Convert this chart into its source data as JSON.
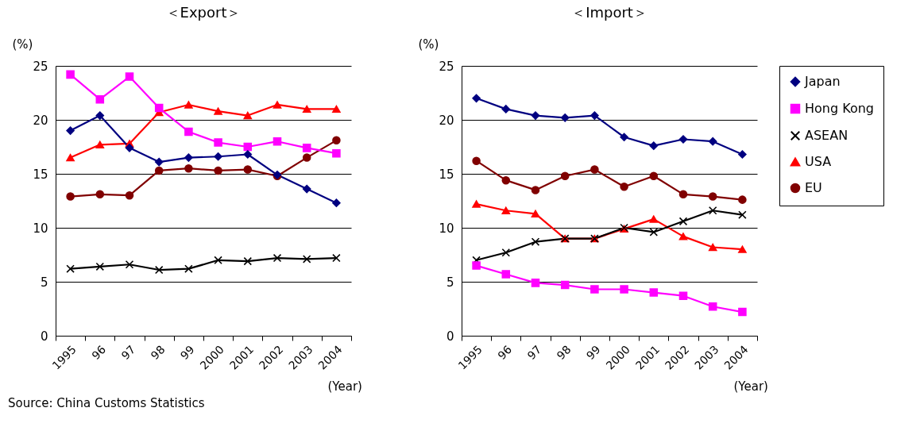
{
  "chart_data": [
    {
      "type": "line",
      "title": "＜Export＞",
      "ylabel": "(%)",
      "xlabel": "(Year)",
      "categories": [
        "1995",
        "96",
        "97",
        "98",
        "99",
        "2000",
        "2001",
        "2002",
        "2003",
        "2004"
      ],
      "ylim": [
        0,
        25
      ],
      "yticks": [
        0,
        5,
        10,
        15,
        20,
        25
      ],
      "grid": "y",
      "legend": "top right",
      "annotations": [
        "Source: China Customs Statistics"
      ],
      "series": [
        {
          "name": "Japan",
          "color": "#000080",
          "marker": "diamond",
          "values": [
            19.0,
            20.4,
            17.4,
            16.1,
            16.5,
            16.6,
            16.8,
            14.9,
            13.6,
            12.3
          ]
        },
        {
          "name": "Hong Kong",
          "color": "#ff00ff",
          "marker": "square",
          "values": [
            24.2,
            21.9,
            24.0,
            21.1,
            18.9,
            17.9,
            17.5,
            18.0,
            17.4,
            16.9
          ]
        },
        {
          "name": "ASEAN",
          "color": "#000000",
          "marker": "cross",
          "values": [
            6.2,
            6.4,
            6.6,
            6.1,
            6.2,
            7.0,
            6.9,
            7.2,
            7.1,
            7.2
          ]
        },
        {
          "name": "USA",
          "color": "#ff0000",
          "marker": "triangle",
          "values": [
            16.5,
            17.7,
            17.8,
            20.7,
            21.4,
            20.8,
            20.4,
            21.4,
            21.0,
            21.0
          ]
        },
        {
          "name": "EU",
          "color": "#800000",
          "marker": "circle",
          "values": [
            12.9,
            13.1,
            13.0,
            15.3,
            15.5,
            15.3,
            15.4,
            14.8,
            16.5,
            18.1
          ]
        }
      ]
    },
    {
      "type": "line",
      "title": "＜Import＞",
      "ylabel": "(%)",
      "xlabel": "(Year)",
      "categories": [
        "1995",
        "96",
        "97",
        "98",
        "99",
        "2000",
        "2001",
        "2002",
        "2003",
        "2004"
      ],
      "ylim": [
        0,
        25
      ],
      "yticks": [
        0,
        5,
        10,
        15,
        20,
        25
      ],
      "grid": "y",
      "legend": "top right",
      "series": [
        {
          "name": "Japan",
          "color": "#000080",
          "marker": "diamond",
          "values": [
            22.0,
            21.0,
            20.4,
            20.2,
            20.4,
            18.4,
            17.6,
            18.2,
            18.0,
            16.8
          ]
        },
        {
          "name": "Hong Kong",
          "color": "#ff00ff",
          "marker": "square",
          "values": [
            6.5,
            5.7,
            4.9,
            4.7,
            4.3,
            4.3,
            4.0,
            3.7,
            2.7,
            2.2
          ]
        },
        {
          "name": "ASEAN",
          "color": "#000000",
          "marker": "cross",
          "values": [
            7.0,
            7.7,
            8.7,
            9.0,
            9.0,
            10.0,
            9.6,
            10.6,
            11.6,
            11.2
          ]
        },
        {
          "name": "USA",
          "color": "#ff0000",
          "marker": "triangle",
          "values": [
            12.2,
            11.6,
            11.3,
            9.0,
            9.0,
            9.9,
            10.8,
            9.2,
            8.2,
            8.0
          ]
        },
        {
          "name": "EU",
          "color": "#800000",
          "marker": "circle",
          "values": [
            16.2,
            14.4,
            13.5,
            14.8,
            15.4,
            13.8,
            14.8,
            13.1,
            12.9,
            12.6
          ]
        }
      ]
    }
  ]
}
